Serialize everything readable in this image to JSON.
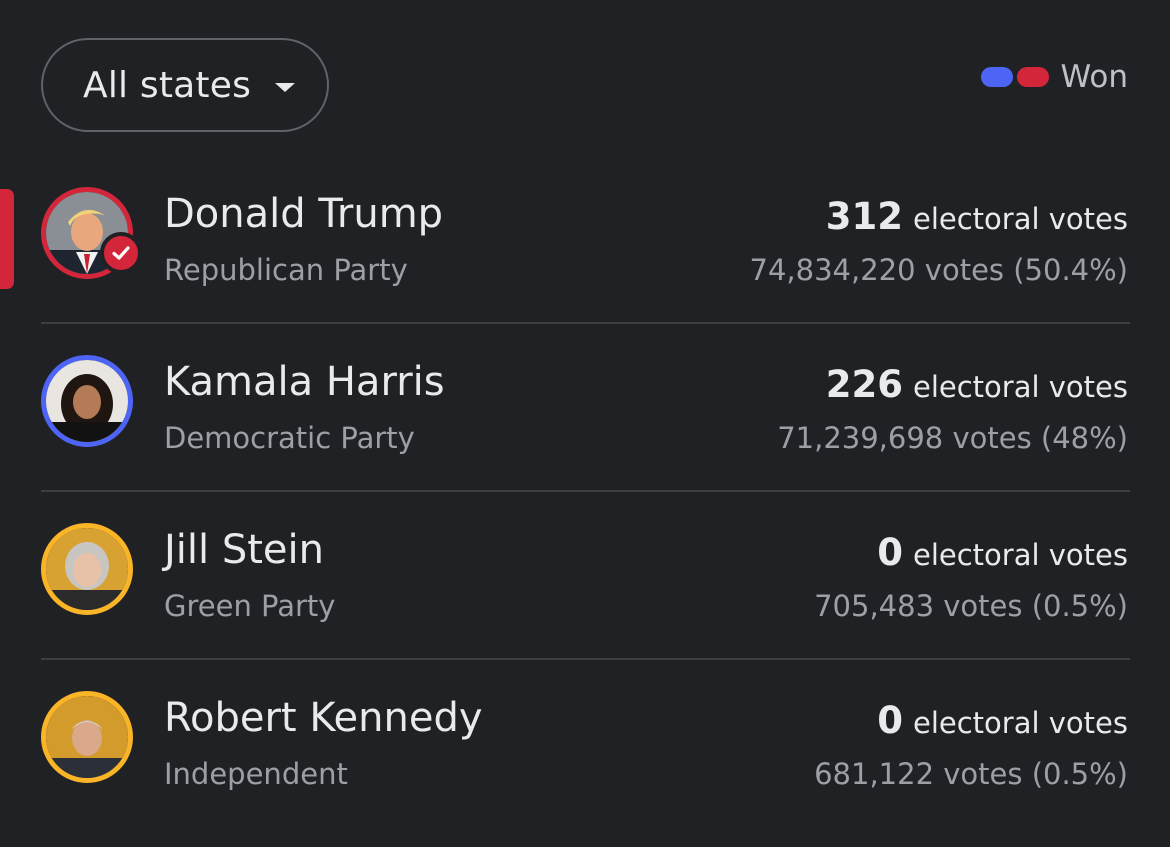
{
  "filter": {
    "label": "All states"
  },
  "legend": {
    "label": "Won",
    "colors": {
      "blue": "#4e64f5",
      "red": "#d3263b"
    }
  },
  "candidates": [
    {
      "name": "Donald Trump",
      "party": "Republican Party",
      "electoral_count": "312",
      "electoral_label": "electoral votes",
      "popular": "74,834,220 votes (50.4%)",
      "ring_color": "#d3263b",
      "winner": true,
      "selected": true
    },
    {
      "name": "Kamala Harris",
      "party": "Democratic Party",
      "electoral_count": "226",
      "electoral_label": "electoral votes",
      "popular": "71,239,698 votes (48%)",
      "ring_color": "#4e64f5",
      "winner": false,
      "selected": false
    },
    {
      "name": "Jill Stein",
      "party": "Green Party",
      "electoral_count": "0",
      "electoral_label": "electoral votes",
      "popular": "705,483 votes (0.5%)",
      "ring_color": "#f9b428",
      "winner": false,
      "selected": false
    },
    {
      "name": "Robert Kennedy",
      "party": "Independent",
      "electoral_count": "0",
      "electoral_label": "electoral votes",
      "popular": "681,122 votes (0.5%)",
      "ring_color": "#f9b428",
      "winner": false,
      "selected": false
    }
  ]
}
